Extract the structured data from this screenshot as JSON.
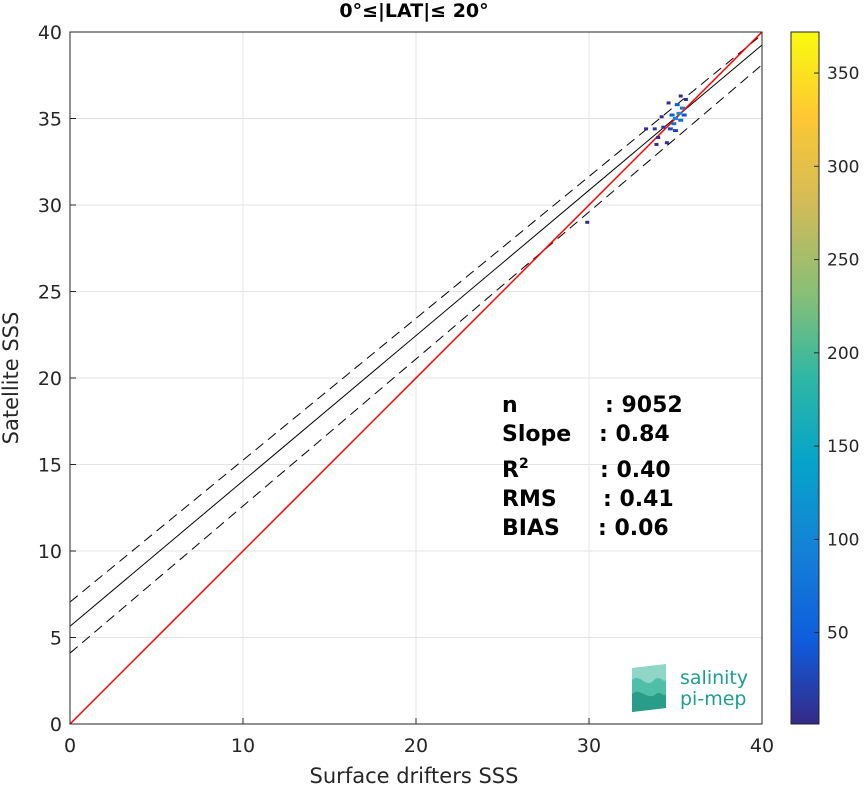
{
  "chart_data": {
    "type": "scatter",
    "title": "0°≤|LAT|≤ 20°",
    "xlabel": "Surface drifters SSS",
    "ylabel": "Satellite SSS",
    "xlim": [
      0,
      40
    ],
    "ylim": [
      0,
      40
    ],
    "xticks": [
      "0",
      "10",
      "20",
      "30",
      "40"
    ],
    "yticks": [
      "0",
      "5",
      "10",
      "15",
      "20",
      "25",
      "30",
      "35",
      "40"
    ],
    "grid": true,
    "identity_line": {
      "color": "#ff0000",
      "from": [
        0,
        0
      ],
      "to": [
        40,
        40
      ]
    },
    "fit_line": {
      "intercept": 5.65,
      "slope": 0.84,
      "color": "#000000"
    },
    "confidence_lines": [
      {
        "intercept": 7.05,
        "slope": 0.82
      },
      {
        "intercept": 4.1,
        "slope": 0.85
      }
    ],
    "density_points": [
      {
        "x": 35.2,
        "y": 35.3,
        "count": 120
      },
      {
        "x": 35.0,
        "y": 35.0,
        "count": 95
      },
      {
        "x": 35.4,
        "y": 35.6,
        "count": 80
      },
      {
        "x": 34.9,
        "y": 34.7,
        "count": 70
      },
      {
        "x": 35.3,
        "y": 34.9,
        "count": 65
      },
      {
        "x": 35.1,
        "y": 35.8,
        "count": 50
      },
      {
        "x": 34.8,
        "y": 35.2,
        "count": 45
      },
      {
        "x": 35.5,
        "y": 35.2,
        "count": 40
      },
      {
        "x": 34.7,
        "y": 34.4,
        "count": 30
      },
      {
        "x": 35.0,
        "y": 34.3,
        "count": 25
      },
      {
        "x": 34.3,
        "y": 34.5,
        "count": 12
      },
      {
        "x": 33.8,
        "y": 34.4,
        "count": 8
      },
      {
        "x": 33.3,
        "y": 34.4,
        "count": 5
      },
      {
        "x": 34.0,
        "y": 33.9,
        "count": 6
      },
      {
        "x": 34.5,
        "y": 33.6,
        "count": 5
      },
      {
        "x": 34.2,
        "y": 35.1,
        "count": 4
      },
      {
        "x": 35.6,
        "y": 36.1,
        "count": 6
      },
      {
        "x": 35.3,
        "y": 36.3,
        "count": 3
      },
      {
        "x": 34.6,
        "y": 35.9,
        "count": 3
      },
      {
        "x": 33.9,
        "y": 33.5,
        "count": 2
      },
      {
        "x": 29.9,
        "y": 29.0,
        "count": 1
      }
    ],
    "colorbar": {
      "min": 1,
      "max": 372,
      "ticks": [
        "50",
        "100",
        "150",
        "200",
        "250",
        "300",
        "350"
      ]
    },
    "stats": [
      {
        "label": "n",
        "value": ": 9052"
      },
      {
        "label": "Slope",
        "value": ": 0.84"
      },
      {
        "label": "R",
        "sup": "2",
        "value": ": 0.40"
      },
      {
        "label": "RMS",
        "value": ": 0.41"
      },
      {
        "label": "BIAS",
        "value": ": 0.06"
      }
    ]
  },
  "logo": {
    "line1": "salinity",
    "line2": "pi-mep"
  }
}
